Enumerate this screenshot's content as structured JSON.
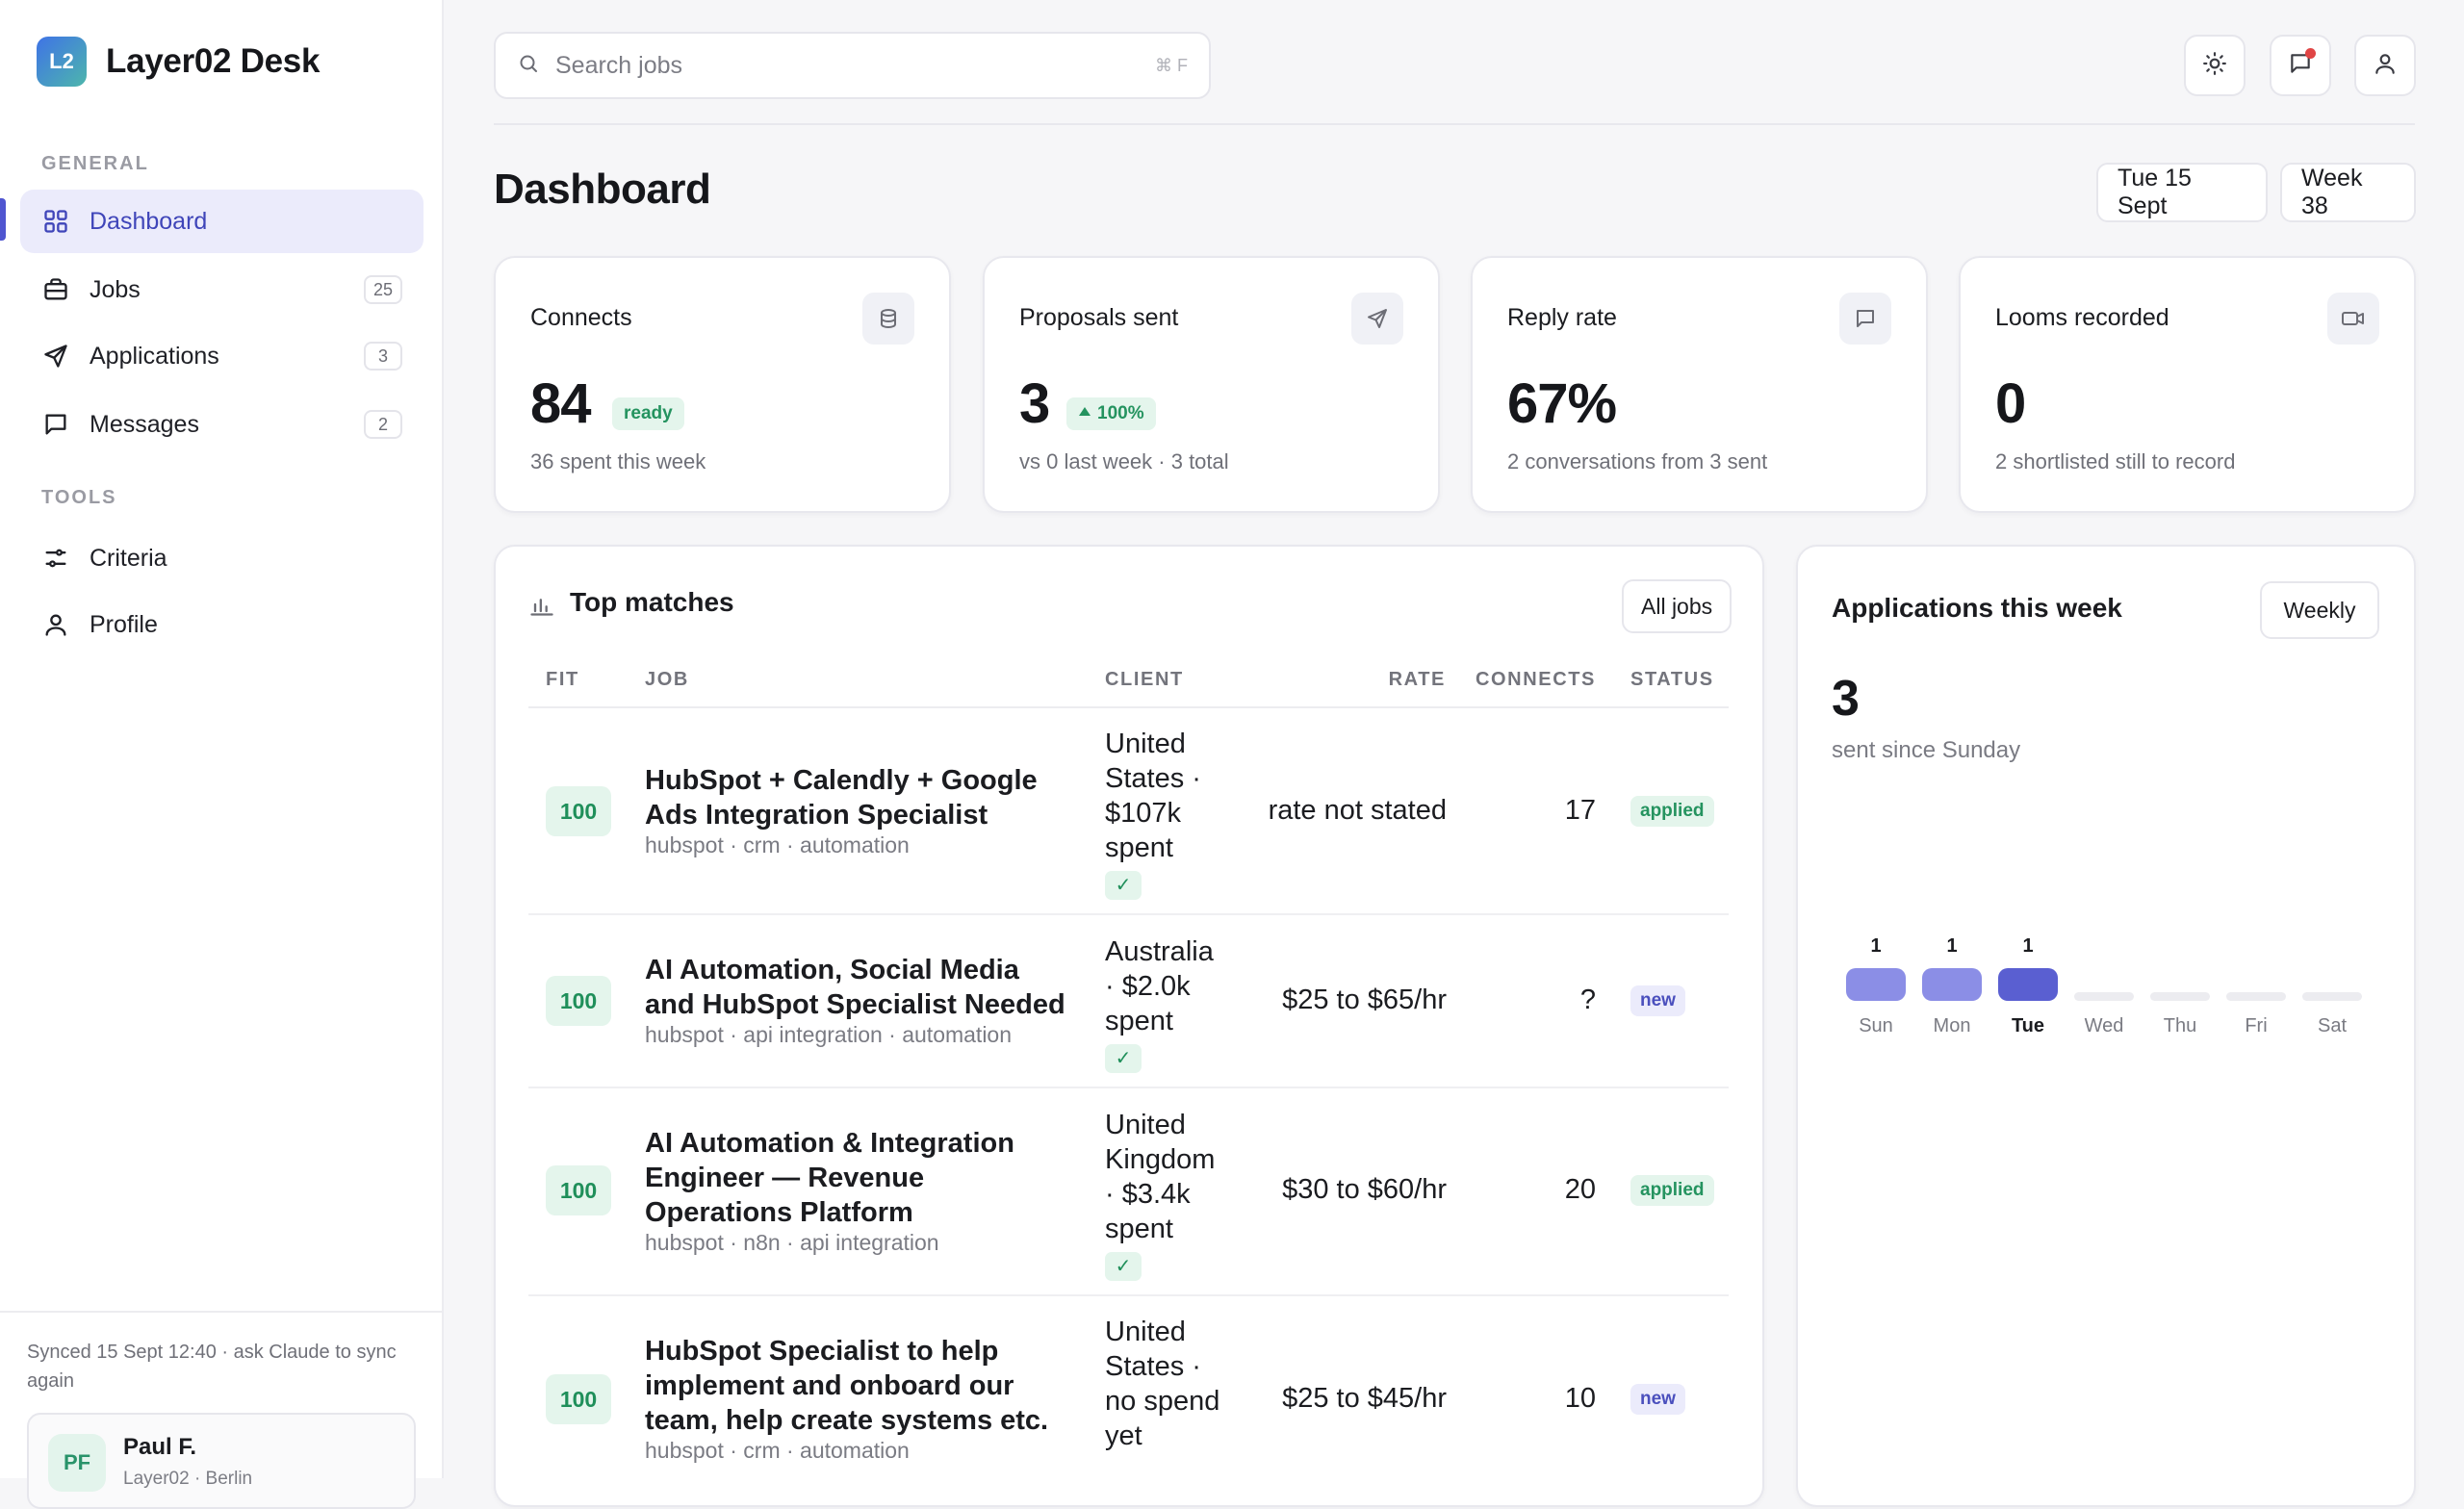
{
  "brand": {
    "logo": "L2",
    "name": "Layer02 Desk"
  },
  "sidebar": {
    "general_label": "GENERAL",
    "tools_label": "TOOLS",
    "items": [
      {
        "label": "Dashboard",
        "icon": "grid-icon",
        "active": true
      },
      {
        "label": "Jobs",
        "icon": "briefcase-icon",
        "count": "25"
      },
      {
        "label": "Applications",
        "icon": "send-icon",
        "count": "3"
      },
      {
        "label": "Messages",
        "icon": "message-icon",
        "count": "2"
      }
    ],
    "tools": [
      {
        "label": "Criteria",
        "icon": "sliders-icon"
      },
      {
        "label": "Profile",
        "icon": "user-icon"
      }
    ],
    "sync_text": "Synced 15 Sept 12:40 · ask Claude to sync again",
    "user": {
      "initials": "PF",
      "name": "Paul F.",
      "subtitle": "Layer02 · Berlin"
    }
  },
  "search": {
    "placeholder": "Search jobs",
    "shortcut": "⌘ F"
  },
  "header": {
    "title": "Dashboard",
    "date": "Tue 15 Sept",
    "week": "Week 38"
  },
  "stats": [
    {
      "title": "Connects",
      "value": "84",
      "badge": "ready",
      "sub": "36 spent this week",
      "icon": "database-icon"
    },
    {
      "title": "Proposals sent",
      "value": "3",
      "badge": "100%",
      "sub": "vs 0 last week · 3 total",
      "icon": "send-icon"
    },
    {
      "title": "Reply rate",
      "value": "67%",
      "sub": "2 conversations from 3 sent",
      "icon": "message-icon"
    },
    {
      "title": "Looms recorded",
      "value": "0",
      "sub": "2 shortlisted still to record",
      "icon": "video-icon"
    }
  ],
  "matches": {
    "title": "Top matches",
    "all_jobs": "All jobs",
    "columns": [
      "FIT",
      "JOB",
      "CLIENT",
      "RATE",
      "CONNECTS",
      "STATUS"
    ],
    "rows": [
      {
        "fit": "100",
        "title": "HubSpot + Calendly + Google Ads Integration Specialist",
        "tags": "hubspot · crm · automation",
        "client": "United States · $107k spent",
        "verified": "✓",
        "rate": "rate not stated",
        "connects": "17",
        "status": "applied"
      },
      {
        "fit": "100",
        "title": "AI Automation, Social Media and HubSpot Specialist Needed",
        "tags": "hubspot · api integration · automation",
        "client": "Australia · $2.0k spent",
        "verified": "✓",
        "rate": "$25 to $65/hr",
        "connects": "?",
        "status": "new"
      },
      {
        "fit": "100",
        "title": "AI Automation & Integration Engineer — Revenue Operations Platform",
        "tags": "hubspot · n8n · api integration",
        "client": "United Kingdom · $3.4k spent",
        "verified": "✓",
        "rate": "$30 to $60/hr",
        "connects": "20",
        "status": "applied"
      },
      {
        "fit": "100",
        "title": "HubSpot Specialist to help implement and onboard our team, help create systems etc.",
        "tags": "hubspot · crm · automation",
        "client": "United States · no spend yet",
        "verified": "",
        "rate": "$25 to $45/hr",
        "connects": "10",
        "status": "new"
      }
    ]
  },
  "weekly": {
    "title": "Applications this week",
    "range_button": "Weekly",
    "value": "3",
    "sub": "sent since Sunday"
  },
  "chart_data": {
    "type": "bar",
    "categories": [
      "Sun",
      "Mon",
      "Tue",
      "Wed",
      "Thu",
      "Fri",
      "Sat"
    ],
    "values": [
      1,
      1,
      1,
      0,
      0,
      0,
      0
    ],
    "highlight": "Tue",
    "colors": {
      "past": "#8b8ee6",
      "today": "#5a5fd1",
      "empty": "#ececf0"
    }
  }
}
